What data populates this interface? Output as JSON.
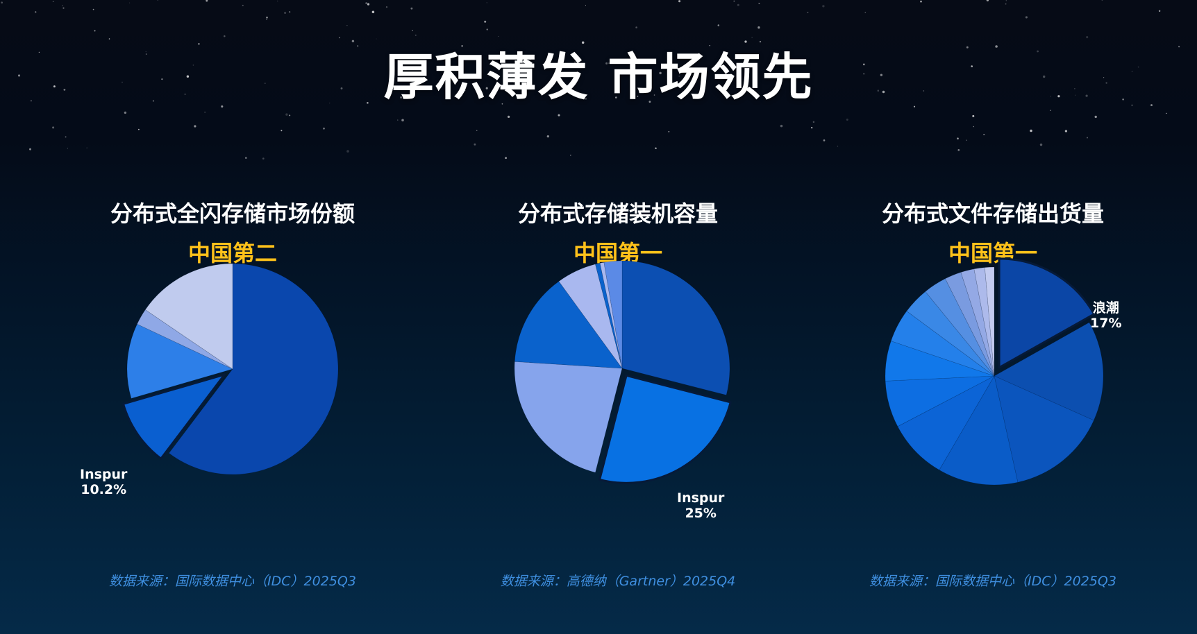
{
  "title": "厚积薄发 市场领先",
  "colors": {
    "accent": "#ffc21a",
    "source_text": "#3f8fe0",
    "title_text": "#ffffff"
  },
  "panels": [
    {
      "title": "分布式全闪存储市场份额",
      "rank": "中国第二",
      "source": "数据来源：国际数据中心（IDC）2025Q3",
      "callout": {
        "name": "Inspur",
        "value": "10.2%"
      }
    },
    {
      "title": "分布式存储装机容量",
      "rank": "中国第一",
      "source": "数据来源：高德纳（Gartner）2025Q4",
      "callout": {
        "name": "Inspur",
        "value": "25%"
      }
    },
    {
      "title": "分布式文件存储出货量",
      "rank": "中国第一",
      "source": "数据来源：国际数据中心（IDC）2025Q3",
      "callout": {
        "name": "浪潮",
        "value": "17%"
      }
    }
  ],
  "chart_data": [
    {
      "type": "pie",
      "title": "分布式全闪存储市场份额",
      "highlight_index": 1,
      "slices": [
        {
          "value": 60.3,
          "color": "#0a47ad"
        },
        {
          "value": 10.2,
          "label": "Inspur 10.2%",
          "color": "#0a5fd0"
        },
        {
          "value": 11.5,
          "color": "#2d7fe8"
        },
        {
          "value": 2.5,
          "color": "#8fa8e6"
        },
        {
          "value": 15.5,
          "color": "#c0cbee"
        }
      ]
    },
    {
      "type": "pie",
      "title": "分布式存储装机容量",
      "highlight_index": 1,
      "slices": [
        {
          "value": 29,
          "color": "#0c4fb2"
        },
        {
          "value": 25,
          "label": "Inspur 25%",
          "color": "#0871e3"
        },
        {
          "value": 22,
          "color": "#86a4ec"
        },
        {
          "value": 14,
          "color": "#0a62cc"
        },
        {
          "value": 6,
          "color": "#a9b8ef"
        },
        {
          "value": 0.7,
          "color": "#0a62cc"
        },
        {
          "value": 0.6,
          "color": "#a9b8ef"
        },
        {
          "value": 2.7,
          "color": "#5b8ae6"
        }
      ]
    },
    {
      "type": "pie",
      "title": "分布式文件存储出货量",
      "highlight_index": 0,
      "slices": [
        {
          "value": 17,
          "label": "浪潮 17%",
          "color": "#0b46a6"
        },
        {
          "value": 15,
          "color": "#0c4fb0"
        },
        {
          "value": 15,
          "color": "#0b55bd"
        },
        {
          "value": 12,
          "color": "#0a5cc8"
        },
        {
          "value": 9,
          "color": "#0c64d6"
        },
        {
          "value": 7,
          "color": "#0d6ee2"
        },
        {
          "value": 6,
          "color": "#1178ea"
        },
        {
          "value": 5,
          "color": "#2480ea"
        },
        {
          "value": 4,
          "color": "#3a88e6"
        },
        {
          "value": 3.5,
          "color": "#558fe2"
        },
        {
          "value": 2.5,
          "color": "#7a9be0"
        },
        {
          "value": 2,
          "color": "#94a9e5"
        },
        {
          "value": 1.6,
          "color": "#adbaeb"
        },
        {
          "value": 1.4,
          "color": "#c3cbf0"
        }
      ]
    }
  ]
}
